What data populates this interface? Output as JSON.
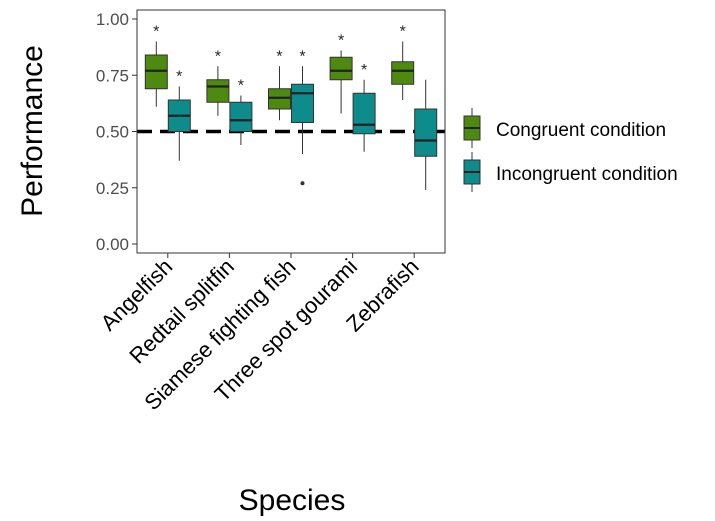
{
  "chart_data": {
    "type": "boxplot",
    "xlabel": "Species",
    "ylabel": "Performance",
    "ylim": [
      -0.04,
      1.04
    ],
    "yticks": [
      0.0,
      0.25,
      0.5,
      0.75,
      1.0
    ],
    "ytick_labels": [
      "0.00",
      "0.25",
      "0.50",
      "0.75",
      "1.00"
    ],
    "categories": [
      "Angelfish",
      "Redtail splitfin",
      "Siamese fighting fish",
      "Three spot gourami",
      "Zebrafish"
    ],
    "reference_line": {
      "y": 0.5,
      "style": "dashed"
    },
    "legend_position": "right",
    "series": [
      {
        "name": "Congruent condition",
        "color": "#4e8a10",
        "boxes": [
          {
            "whisker_low": 0.61,
            "q1": 0.69,
            "median": 0.77,
            "q3": 0.84,
            "whisker_high": 0.9,
            "annotation": "*",
            "outliers": []
          },
          {
            "whisker_low": 0.57,
            "q1": 0.63,
            "median": 0.7,
            "q3": 0.73,
            "whisker_high": 0.79,
            "annotation": "*",
            "outliers": []
          },
          {
            "whisker_low": 0.55,
            "q1": 0.6,
            "median": 0.65,
            "q3": 0.69,
            "whisker_high": 0.79,
            "annotation": "*",
            "outliers": []
          },
          {
            "whisker_low": 0.58,
            "q1": 0.73,
            "median": 0.77,
            "q3": 0.83,
            "whisker_high": 0.86,
            "annotation": "*",
            "outliers": []
          },
          {
            "whisker_low": 0.64,
            "q1": 0.71,
            "median": 0.77,
            "q3": 0.81,
            "whisker_high": 0.9,
            "annotation": "*",
            "outliers": []
          }
        ]
      },
      {
        "name": "Incongruent condition",
        "color": "#0e8b8b",
        "boxes": [
          {
            "whisker_low": 0.37,
            "q1": 0.5,
            "median": 0.57,
            "q3": 0.64,
            "whisker_high": 0.7,
            "annotation": "*",
            "outliers": []
          },
          {
            "whisker_low": 0.44,
            "q1": 0.5,
            "median": 0.55,
            "q3": 0.63,
            "whisker_high": 0.66,
            "annotation": "*",
            "outliers": []
          },
          {
            "whisker_low": 0.4,
            "q1": 0.54,
            "median": 0.67,
            "q3": 0.71,
            "whisker_high": 0.79,
            "annotation": "*",
            "outliers": [
              0.27
            ]
          },
          {
            "whisker_low": 0.41,
            "q1": 0.49,
            "median": 0.53,
            "q3": 0.67,
            "whisker_high": 0.73,
            "annotation": "*",
            "outliers": []
          },
          {
            "whisker_low": 0.24,
            "q1": 0.39,
            "median": 0.46,
            "q3": 0.6,
            "whisker_high": 0.73,
            "annotation": "",
            "outliers": []
          }
        ]
      }
    ]
  }
}
